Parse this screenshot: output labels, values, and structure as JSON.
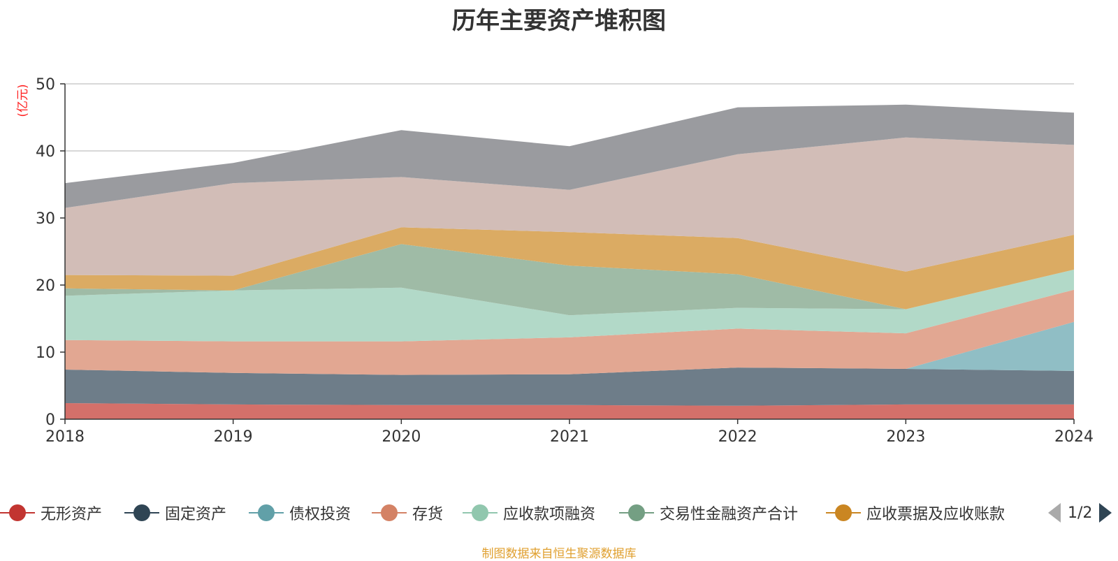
{
  "colors": {
    "title": "#333333",
    "source": "#e0a030",
    "unit": "#ff2020"
  },
  "legend_pager": {
    "text": "1/2"
  },
  "source_note": "制图数据来自恒生聚源数据库",
  "chart_data": {
    "type": "area",
    "stacked": true,
    "title": "历年主要资产堆积图",
    "ylabel": "(亿元)",
    "xlabel": "",
    "ylim": [
      0,
      50
    ],
    "yticks": [
      0,
      10,
      20,
      30,
      40,
      50
    ],
    "grid": true,
    "legend_position": "bottom",
    "categories": [
      "2018",
      "2019",
      "2020",
      "2021",
      "2022",
      "2023",
      "2024"
    ],
    "series": [
      {
        "name": "无形资产",
        "color": "#c23531",
        "fill": "#d4706a",
        "values": [
          2.4,
          2.2,
          2.1,
          2.1,
          2.0,
          2.2,
          2.2
        ],
        "in_legend": true
      },
      {
        "name": "固定资产",
        "color": "#2f4554",
        "fill": "#6e7d89",
        "values": [
          5.0,
          4.7,
          4.5,
          4.6,
          5.7,
          5.3,
          5.0
        ],
        "in_legend": true
      },
      {
        "name": "债权投资",
        "color": "#61a0a8",
        "fill": "#90bec5",
        "values": [
          0,
          0,
          0,
          0,
          0,
          0,
          7.3
        ],
        "in_legend": true
      },
      {
        "name": "存货",
        "color": "#d48265",
        "fill": "#e2a792",
        "values": [
          4.4,
          4.7,
          5.0,
          5.5,
          5.8,
          5.3,
          4.8
        ],
        "in_legend": true
      },
      {
        "name": "应收款项融资",
        "color": "#91c7ae",
        "fill": "#b2d9c8",
        "values": [
          6.6,
          7.6,
          8.0,
          3.3,
          3.1,
          3.6,
          3.0
        ],
        "in_legend": true
      },
      {
        "name": "交易性金融资产合计",
        "color": "#749f83",
        "fill": "#9fbba6",
        "values": [
          1.1,
          0,
          6.5,
          7.4,
          5.0,
          0,
          0
        ],
        "in_legend": true
      },
      {
        "name": "应收票据及应收账款",
        "color": "#ca8622",
        "fill": "#dbab63",
        "values": [
          2.0,
          2.2,
          2.5,
          5.0,
          5.4,
          5.6,
          5.2
        ],
        "in_legend": true
      },
      {
        "name": "",
        "color": "#bda29a",
        "fill": "#d2bdb7",
        "values": [
          10.0,
          13.8,
          7.5,
          6.3,
          12.5,
          20.0,
          13.4
        ],
        "in_legend": false
      },
      {
        "name": "",
        "color": "#6e7074",
        "fill": "#9a9b9f",
        "values": [
          3.7,
          3.0,
          7.0,
          6.5,
          7.0,
          4.9,
          4.8
        ],
        "in_legend": false
      }
    ]
  }
}
